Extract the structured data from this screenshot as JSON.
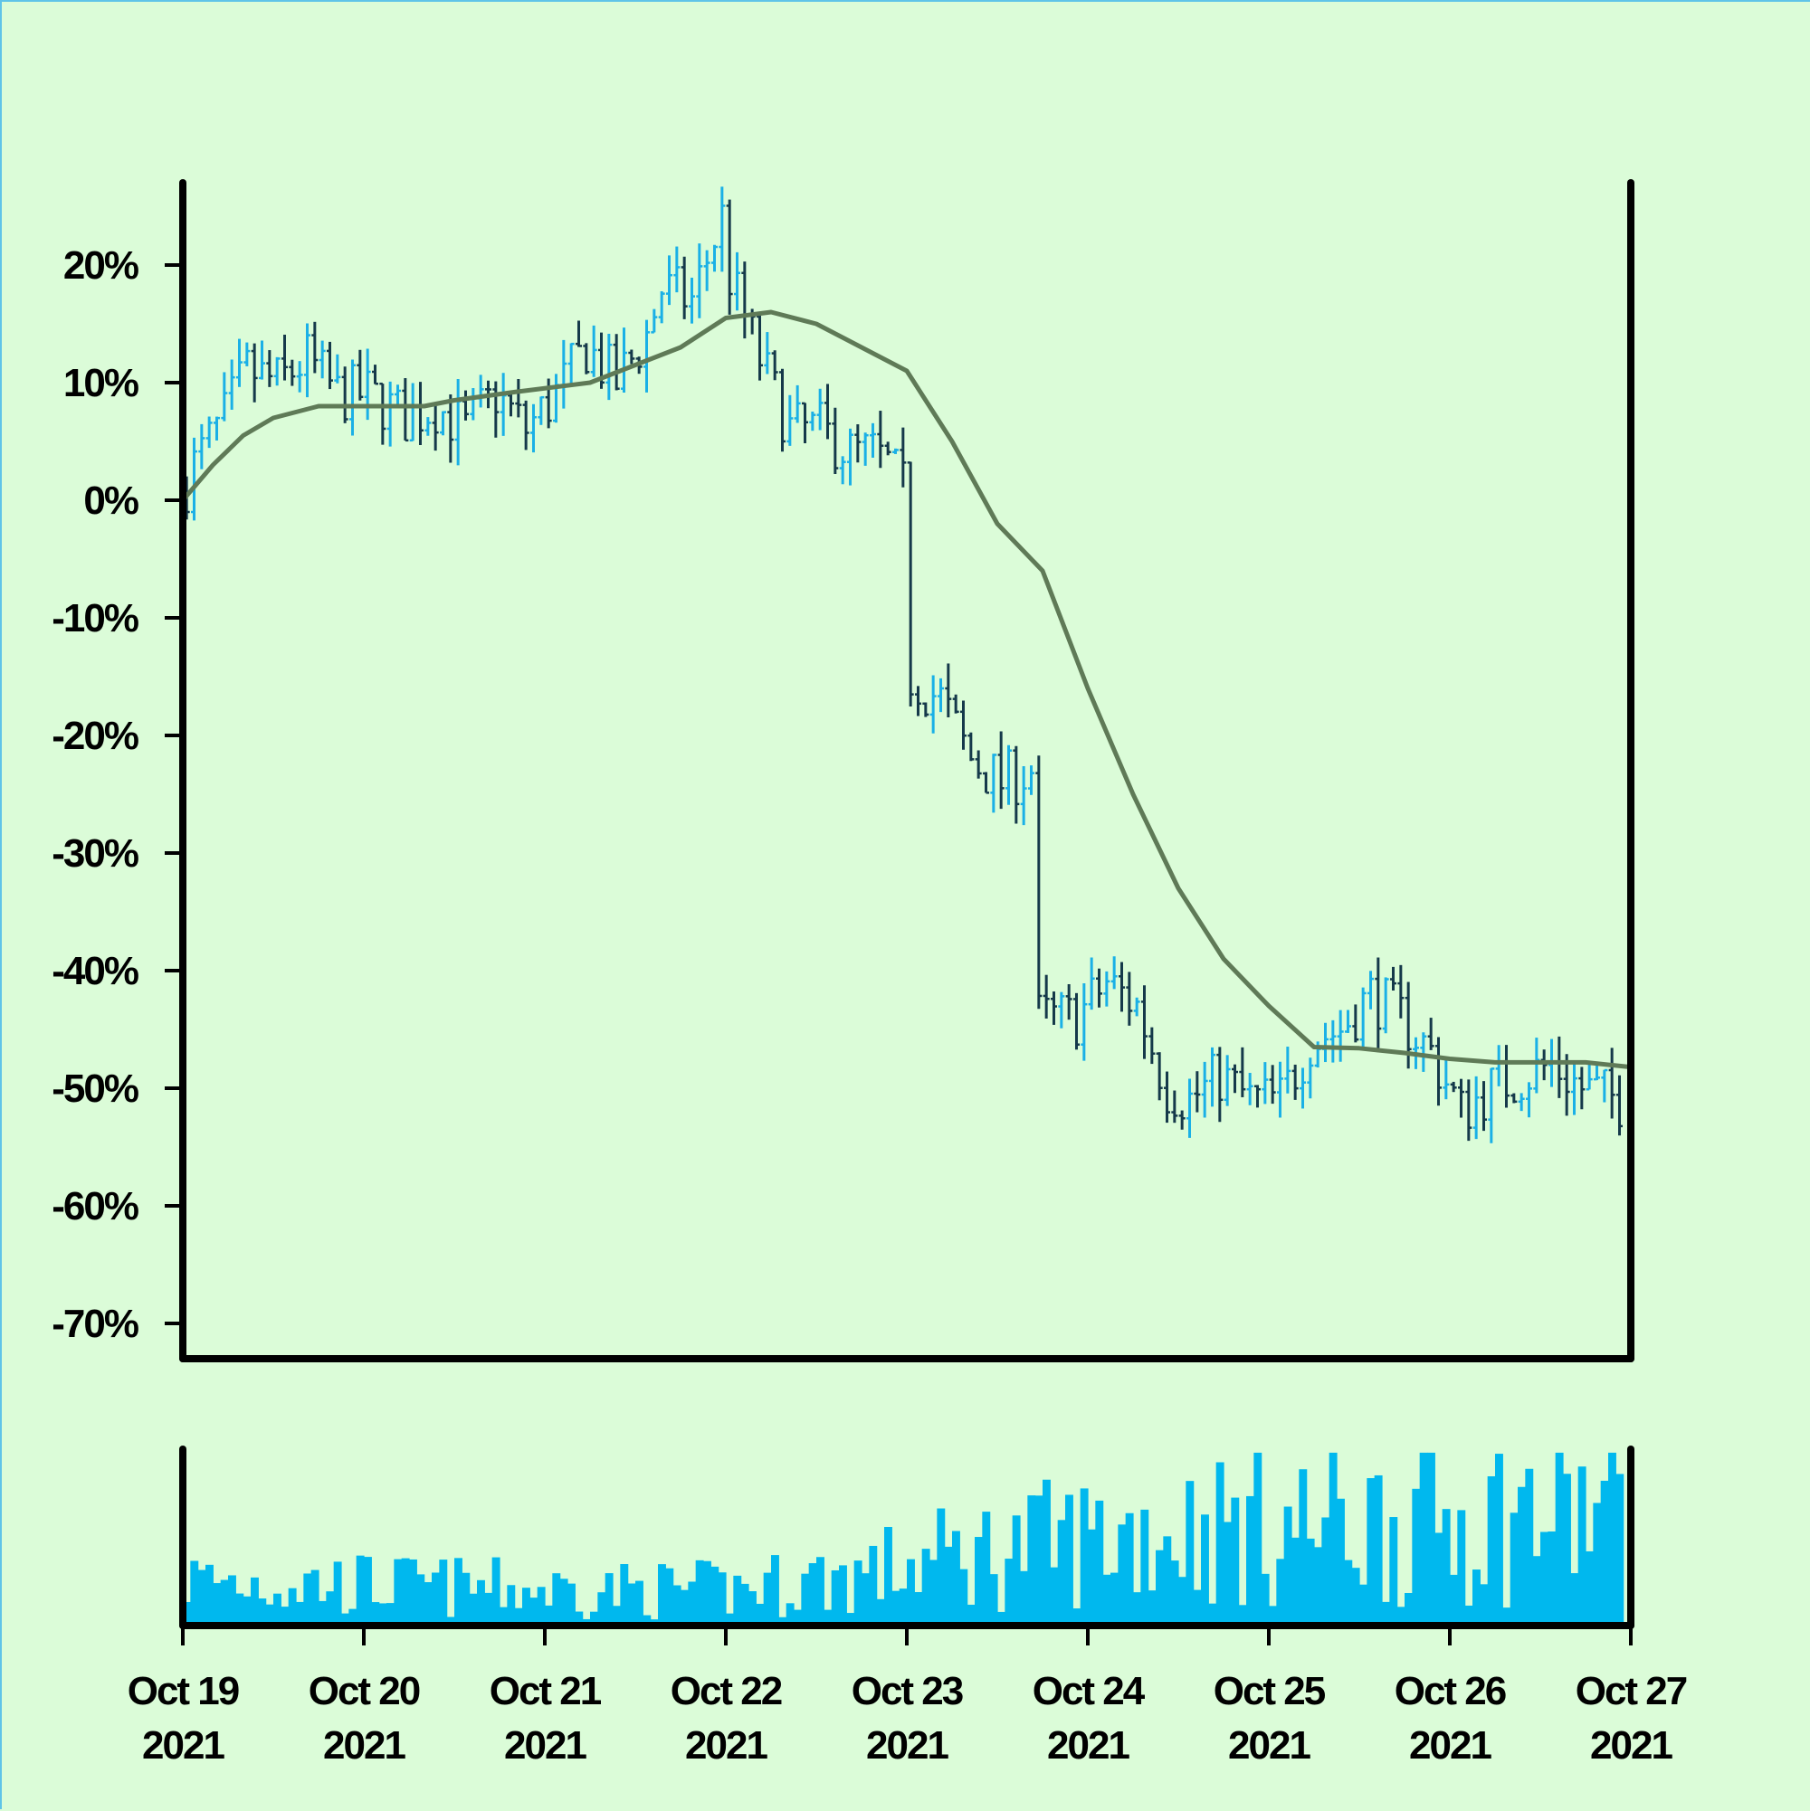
{
  "chart_data": {
    "type": "ohlc",
    "colors": {
      "background": "#dbfcd8",
      "up": "#1ab0e6",
      "down": "#15394a",
      "moving_average": "#5f7a57",
      "volume": "#00b8ee",
      "axis": "#000000"
    },
    "y_axis": {
      "unit": "%",
      "ylim": [
        -73,
        27
      ],
      "ticks": [
        20,
        10,
        0,
        -10,
        -20,
        -30,
        -40,
        -50,
        -60,
        -70
      ],
      "tick_labels": [
        "20%",
        "10%",
        "0%",
        "-10%",
        "-20%",
        "-30%",
        "-40%",
        "-50%",
        "-60%",
        "-70%"
      ]
    },
    "x_axis": {
      "start": "2021-10-19",
      "end": "2021-10-27",
      "ticks": [
        {
          "date": "2021-10-19",
          "label": [
            "Oct 19",
            "2021"
          ]
        },
        {
          "date": "2021-10-20",
          "label": [
            "Oct 20",
            "2021"
          ]
        },
        {
          "date": "2021-10-21",
          "label": [
            "Oct 21",
            "2021"
          ]
        },
        {
          "date": "2021-10-22",
          "label": [
            "Oct 22",
            "2021"
          ]
        },
        {
          "date": "2021-10-23",
          "label": [
            "Oct 23",
            "2021"
          ]
        },
        {
          "date": "2021-10-24",
          "label": [
            "Oct 24",
            "2021"
          ]
        },
        {
          "date": "2021-10-25",
          "label": [
            "Oct 25",
            "2021"
          ]
        },
        {
          "date": "2021-10-26",
          "label": [
            "Oct 26",
            "2021"
          ]
        },
        {
          "date": "2021-10-27",
          "label": [
            "Oct 27",
            "2021"
          ]
        }
      ]
    },
    "price_path": [
      [
        "2021-10-19T00:00",
        0
      ],
      [
        "2021-10-19T02:00",
        3
      ],
      [
        "2021-10-19T06:00",
        7
      ],
      [
        "2021-10-19T09:00",
        11
      ],
      [
        "2021-10-19T13:00",
        10
      ],
      [
        "2021-10-19T17:00",
        12
      ],
      [
        "2021-10-19T21:00",
        9
      ],
      [
        "2021-10-20T01:00",
        9
      ],
      [
        "2021-10-20T06:00",
        7
      ],
      [
        "2021-10-20T10:00",
        8
      ],
      [
        "2021-10-20T14:00",
        6
      ],
      [
        "2021-10-20T18:00",
        9
      ],
      [
        "2021-10-20T22:00",
        6
      ],
      [
        "2021-10-21T02:00",
        9
      ],
      [
        "2021-10-21T06:00",
        13
      ],
      [
        "2021-10-21T10:00",
        10
      ],
      [
        "2021-10-21T14:00",
        14
      ],
      [
        "2021-10-21T16:00",
        18
      ],
      [
        "2021-10-21T20:00",
        17
      ],
      [
        "2021-10-22T00:00",
        24
      ],
      [
        "2021-10-22T01:00",
        19
      ],
      [
        "2021-10-22T05:00",
        12
      ],
      [
        "2021-10-22T09:00",
        6
      ],
      [
        "2021-10-22T13:00",
        6
      ],
      [
        "2021-10-22T17:00",
        4
      ],
      [
        "2021-10-22T20:00",
        4
      ],
      [
        "2021-10-22T22:00",
        3
      ],
      [
        "2021-10-23T00:00",
        1
      ],
      [
        "2021-10-23T01:00",
        -15
      ],
      [
        "2021-10-23T05:00",
        -17
      ],
      [
        "2021-10-23T09:00",
        -22
      ],
      [
        "2021-10-23T13:00",
        -24
      ],
      [
        "2021-10-23T17:00",
        -23
      ],
      [
        "2021-10-23T18:00",
        -44
      ],
      [
        "2021-10-23T23:00",
        -44
      ],
      [
        "2021-10-24T03:00",
        -41
      ],
      [
        "2021-10-24T07:00",
        -43
      ],
      [
        "2021-10-24T11:00",
        -50
      ],
      [
        "2021-10-24T14:00",
        -51
      ],
      [
        "2021-10-24T18:00",
        -49
      ],
      [
        "2021-10-24T22:00",
        -51
      ],
      [
        "2021-10-25T02:00",
        -51
      ],
      [
        "2021-10-25T06:00",
        -46
      ],
      [
        "2021-10-25T10:00",
        -45
      ],
      [
        "2021-10-25T14:00",
        -42
      ],
      [
        "2021-10-25T18:00",
        -44
      ],
      [
        "2021-10-25T22:00",
        -47
      ],
      [
        "2021-10-26T02:00",
        -52
      ],
      [
        "2021-10-26T06:00",
        -50
      ],
      [
        "2021-10-26T10:00",
        -49
      ],
      [
        "2021-10-26T14:00",
        -48
      ],
      [
        "2021-10-26T18:00",
        -50
      ],
      [
        "2021-10-26T23:00",
        -51
      ]
    ],
    "moving_average": [
      [
        "2021-10-19T00:00",
        0
      ],
      [
        "2021-10-19T04:00",
        3
      ],
      [
        "2021-10-19T08:00",
        5.5
      ],
      [
        "2021-10-19T12:00",
        7
      ],
      [
        "2021-10-19T18:00",
        8
      ],
      [
        "2021-10-20T00:00",
        8
      ],
      [
        "2021-10-20T08:00",
        8
      ],
      [
        "2021-10-20T12:00",
        8.5
      ],
      [
        "2021-10-20T20:00",
        9.2
      ],
      [
        "2021-10-21T06:00",
        10
      ],
      [
        "2021-10-21T12:00",
        11.5
      ],
      [
        "2021-10-21T18:00",
        13
      ],
      [
        "2021-10-22T00:00",
        15.5
      ],
      [
        "2021-10-22T06:00",
        16
      ],
      [
        "2021-10-22T12:00",
        15
      ],
      [
        "2021-10-22T18:00",
        13
      ],
      [
        "2021-10-23T00:00",
        11
      ],
      [
        "2021-10-23T06:00",
        5
      ],
      [
        "2021-10-23T12:00",
        -2
      ],
      [
        "2021-10-23T18:00",
        -6
      ],
      [
        "2021-10-24T00:00",
        -16
      ],
      [
        "2021-10-24T06:00",
        -25
      ],
      [
        "2021-10-24T12:00",
        -33
      ],
      [
        "2021-10-24T18:00",
        -39
      ],
      [
        "2021-10-25T00:00",
        -43
      ],
      [
        "2021-10-25T06:00",
        -46.5
      ],
      [
        "2021-10-25T12:00",
        -46.6
      ],
      [
        "2021-10-25T18:00",
        -47
      ],
      [
        "2021-10-26T00:00",
        -47.5
      ],
      [
        "2021-10-26T06:00",
        -47.8
      ],
      [
        "2021-10-26T12:00",
        -47.8
      ],
      [
        "2021-10-26T18:00",
        -47.8
      ],
      [
        "2021-10-27T00:00",
        -48.2
      ]
    ],
    "volume_profile": [
      [
        "2021-10-19T00:00",
        0.28
      ],
      [
        "2021-10-20T00:00",
        0.25
      ],
      [
        "2021-10-21T00:00",
        0.22
      ],
      [
        "2021-10-22T00:00",
        0.22
      ],
      [
        "2021-10-22T18:00",
        0.32
      ],
      [
        "2021-10-23T06:00",
        0.42
      ],
      [
        "2021-10-23T18:00",
        0.5
      ],
      [
        "2021-10-24T12:00",
        0.6
      ],
      [
        "2021-10-25T00:00",
        0.6
      ],
      [
        "2021-10-26T00:00",
        0.66
      ],
      [
        "2021-10-27T00:00",
        0.7
      ]
    ]
  }
}
